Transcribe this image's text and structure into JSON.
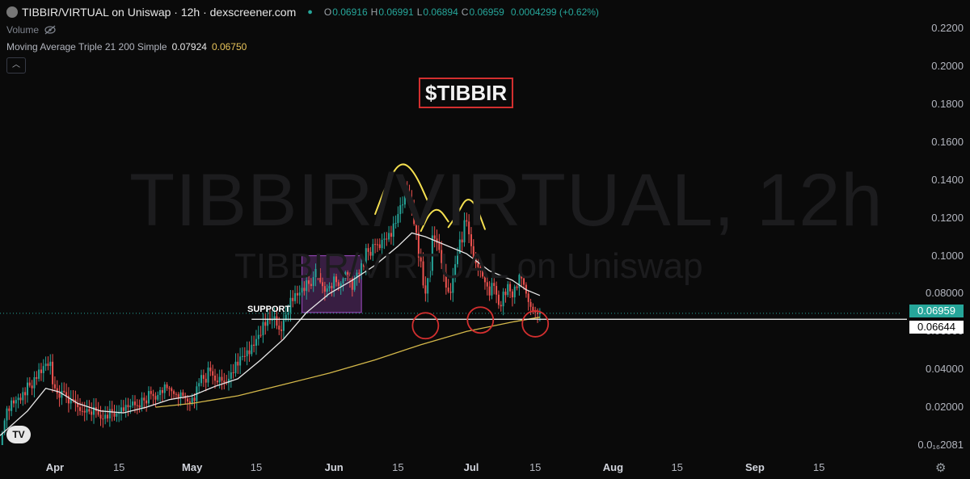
{
  "header": {
    "title": "TIBBIR/VIRTUAL on Uniswap · 12h · dexscreener.com",
    "o_label": "O",
    "o_value": "0.06916",
    "h_label": "H",
    "h_value": "0.06991",
    "l_label": "L",
    "l_value": "0.06894",
    "c_label": "C",
    "c_value": "0.06959",
    "change": "0.0004299 (+0.62%)"
  },
  "volume_label": "Volume",
  "indicator": {
    "label": "Moving Average Triple 21 200 Simple",
    "value1": "0.07924",
    "value2": "0.06750"
  },
  "watermark": {
    "line1": "TIBBIR/VIRTUAL, 12h",
    "line2": "TIBBIR/VIRTUAL on Uniswap"
  },
  "annotation_title": "$TIBBIR",
  "support_label": "SUPPORT",
  "price_labels": {
    "last": "0.06959",
    "support": "0.06644"
  },
  "colors": {
    "up": "#26a69a",
    "down": "#ef5350",
    "ma_fast": "#e8e8e8",
    "ma_slow": "#d4b84a",
    "annotation": "#d32f2f",
    "arcs": "#f5e050",
    "box": "#8e44ad"
  },
  "chart_data": {
    "type": "candlestick",
    "title": "TIBBIR/VIRTUAL on Uniswap · 12h · dexscreener.com",
    "y_tick_labels": [
      "0.2200",
      "0.2000",
      "0.1800",
      "0.1600",
      "0.1400",
      "0.1200",
      "0.1000",
      "0.08000",
      "0.06000",
      "0.04000",
      "0.02000",
      "0.0₁₆2081"
    ],
    "y_tick_values": [
      0.22,
      0.2,
      0.18,
      0.16,
      0.14,
      0.12,
      0.1,
      0.08,
      0.06,
      0.04,
      0.02,
      0.0
    ],
    "x_tick_labels": [
      "Apr",
      "15",
      "May",
      "15",
      "Jun",
      "15",
      "Jul",
      "15",
      "Aug",
      "15",
      "Sep",
      "15"
    ],
    "x_tick_days": [
      0,
      14,
      30,
      44,
      61,
      75,
      91,
      105,
      122,
      136,
      153,
      167
    ],
    "x_bold": [
      "Apr",
      "May",
      "Jun",
      "Jul",
      "Aug",
      "Sep"
    ],
    "ylim": [
      0,
      0.235
    ],
    "x_day_range": [
      -12,
      185
    ],
    "close_series": [
      [
        -12.0,
        0.0
      ],
      [
        -11.0,
        0.013
      ],
      [
        -10.0,
        0.018
      ],
      [
        -9.0,
        0.022
      ],
      [
        -8.0,
        0.025
      ],
      [
        -7.0,
        0.028
      ],
      [
        -6.0,
        0.033
      ],
      [
        -5.0,
        0.03
      ],
      [
        -4.0,
        0.035
      ],
      [
        -3.0,
        0.038
      ],
      [
        -2.0,
        0.043
      ],
      [
        -1.0,
        0.044
      ],
      [
        0.0,
        0.03
      ],
      [
        1.0,
        0.025
      ],
      [
        2.0,
        0.028
      ],
      [
        3.0,
        0.022
      ],
      [
        4.0,
        0.024
      ],
      [
        5.0,
        0.02
      ],
      [
        6.0,
        0.018
      ],
      [
        7.0,
        0.019
      ],
      [
        8.0,
        0.016
      ],
      [
        9.0,
        0.018
      ],
      [
        10.0,
        0.014
      ],
      [
        11.0,
        0.016
      ],
      [
        12.0,
        0.019
      ],
      [
        13.0,
        0.015
      ],
      [
        14.0,
        0.017
      ],
      [
        15.0,
        0.018
      ],
      [
        16.0,
        0.02
      ],
      [
        17.0,
        0.023
      ],
      [
        18.0,
        0.021
      ],
      [
        19.0,
        0.025
      ],
      [
        20.0,
        0.022
      ],
      [
        21.0,
        0.027
      ],
      [
        22.0,
        0.024
      ],
      [
        23.0,
        0.029
      ],
      [
        24.0,
        0.032
      ],
      [
        25.0,
        0.03
      ],
      [
        26.0,
        0.027
      ],
      [
        27.0,
        0.025
      ],
      [
        28.0,
        0.026
      ],
      [
        29.0,
        0.023
      ],
      [
        30.0,
        0.025
      ],
      [
        31.0,
        0.031
      ],
      [
        32.0,
        0.037
      ],
      [
        33.0,
        0.033
      ],
      [
        34.0,
        0.039
      ],
      [
        35.0,
        0.034
      ],
      [
        36.0,
        0.036
      ],
      [
        37.0,
        0.033
      ],
      [
        38.0,
        0.035
      ],
      [
        39.0,
        0.038
      ],
      [
        40.0,
        0.042
      ],
      [
        41.0,
        0.047
      ],
      [
        42.0,
        0.05
      ],
      [
        43.0,
        0.053
      ],
      [
        44.0,
        0.056
      ],
      [
        45.0,
        0.058
      ],
      [
        46.0,
        0.063
      ],
      [
        47.0,
        0.066
      ],
      [
        48.0,
        0.068
      ],
      [
        49.0,
        0.061
      ],
      [
        50.0,
        0.066
      ],
      [
        51.0,
        0.07
      ],
      [
        52.0,
        0.076
      ],
      [
        53.0,
        0.079
      ],
      [
        54.0,
        0.083
      ],
      [
        55.0,
        0.087
      ],
      [
        56.0,
        0.084
      ],
      [
        57.0,
        0.093
      ],
      [
        58.0,
        0.086
      ],
      [
        59.0,
        0.081
      ],
      [
        60.0,
        0.084
      ],
      [
        61.0,
        0.089
      ],
      [
        62.0,
        0.084
      ],
      [
        63.0,
        0.088
      ],
      [
        64.0,
        0.09
      ],
      [
        65.0,
        0.082
      ],
      [
        66.0,
        0.091
      ],
      [
        67.0,
        0.096
      ],
      [
        68.0,
        0.104
      ],
      [
        69.0,
        0.1
      ],
      [
        70.0,
        0.106
      ],
      [
        71.0,
        0.104
      ],
      [
        72.0,
        0.109
      ],
      [
        73.0,
        0.112
      ],
      [
        74.0,
        0.117
      ],
      [
        75.0,
        0.122
      ],
      [
        76.0,
        0.127
      ],
      [
        77.0,
        0.133
      ],
      [
        78.0,
        0.125
      ],
      [
        79.0,
        0.112
      ],
      [
        80.0,
        0.097
      ],
      [
        81.0,
        0.08
      ],
      [
        82.0,
        0.092
      ],
      [
        83.0,
        0.109
      ],
      [
        84.0,
        0.103
      ],
      [
        85.0,
        0.091
      ],
      [
        86.0,
        0.081
      ],
      [
        87.0,
        0.089
      ],
      [
        88.0,
        0.1
      ],
      [
        89.0,
        0.107
      ],
      [
        90.0,
        0.118
      ],
      [
        91.0,
        0.105
      ],
      [
        92.0,
        0.096
      ],
      [
        93.0,
        0.092
      ],
      [
        94.0,
        0.086
      ],
      [
        95.0,
        0.079
      ],
      [
        96.0,
        0.084
      ],
      [
        97.0,
        0.074
      ],
      [
        98.0,
        0.081
      ],
      [
        99.0,
        0.085
      ],
      [
        100.0,
        0.078
      ],
      [
        101.0,
        0.083
      ],
      [
        102.0,
        0.088
      ],
      [
        103.0,
        0.08
      ],
      [
        104.0,
        0.073
      ],
      [
        105.0,
        0.07
      ],
      [
        106.0,
        0.07
      ]
    ],
    "ma21": [
      [
        -12.0,
        0.005
      ],
      [
        -6.0,
        0.018
      ],
      [
        -2.0,
        0.03
      ],
      [
        1.0,
        0.028
      ],
      [
        5.0,
        0.022
      ],
      [
        10.0,
        0.018
      ],
      [
        15.0,
        0.017
      ],
      [
        20.0,
        0.02
      ],
      [
        25.0,
        0.024
      ],
      [
        30.0,
        0.026
      ],
      [
        35.0,
        0.031
      ],
      [
        40.0,
        0.035
      ],
      [
        45.0,
        0.045
      ],
      [
        50.0,
        0.056
      ],
      [
        55.0,
        0.07
      ],
      [
        60.0,
        0.08
      ],
      [
        65.0,
        0.087
      ],
      [
        70.0,
        0.095
      ],
      [
        75.0,
        0.105
      ],
      [
        78.0,
        0.112
      ],
      [
        81.0,
        0.11
      ],
      [
        85.0,
        0.106
      ],
      [
        90.0,
        0.101
      ],
      [
        95.0,
        0.092
      ],
      [
        100.0,
        0.087
      ],
      [
        103.0,
        0.082
      ],
      [
        106.0,
        0.079
      ]
    ],
    "ma200": [
      [
        22.0,
        0.02
      ],
      [
        30.0,
        0.022
      ],
      [
        40.0,
        0.026
      ],
      [
        50.0,
        0.032
      ],
      [
        60.0,
        0.038
      ],
      [
        70.0,
        0.045
      ],
      [
        80.0,
        0.053
      ],
      [
        90.0,
        0.06
      ],
      [
        100.0,
        0.065
      ],
      [
        106.0,
        0.0675
      ]
    ],
    "support_level": 0.06644,
    "last_price": 0.06959,
    "box": {
      "x0": 54.0,
      "x1": 67.0,
      "y0": 0.07,
      "y1": 0.1
    },
    "arcs": [
      [
        [
          70.0,
          0.122
        ],
        [
          72.5,
          0.138
        ],
        [
          75.5,
          0.15
        ],
        [
          78.5,
          0.145
        ],
        [
          82.0,
          0.126
        ]
      ],
      [
        [
          80.0,
          0.113
        ],
        [
          82.0,
          0.123
        ],
        [
          84.0,
          0.125
        ],
        [
          86.0,
          0.118
        ]
      ],
      [
        [
          86.0,
          0.115
        ],
        [
          88.0,
          0.122
        ],
        [
          90.0,
          0.131
        ],
        [
          92.0,
          0.127
        ],
        [
          94.0,
          0.114
        ]
      ]
    ],
    "circles": [
      [
        81.0,
        0.063
      ],
      [
        93.0,
        0.066
      ],
      [
        105.0,
        0.064
      ]
    ]
  }
}
